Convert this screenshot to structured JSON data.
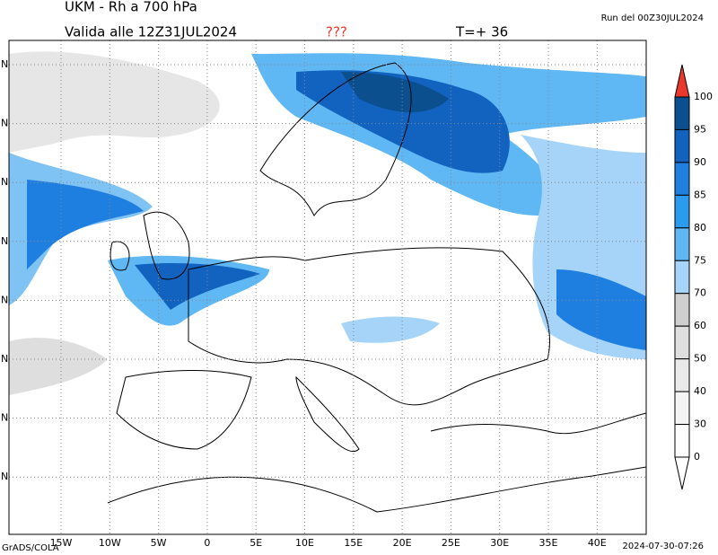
{
  "header": {
    "title": "UKM - Rh a 700 hPa",
    "valid": "Valida alle 12Z31JUL2024",
    "flag": "???",
    "step": "T=+ 36",
    "run": "Run del 00Z30JUL2024"
  },
  "map": {
    "lon_labels": [
      "15W",
      "10W",
      "5W",
      "0",
      "5E",
      "10E",
      "15E",
      "20E",
      "25E",
      "30E",
      "35E",
      "40E"
    ],
    "lat_labels": [
      "N",
      "N",
      "N",
      "N",
      "N",
      "N",
      "N",
      "N"
    ]
  },
  "colorbar": {
    "labels": [
      "100",
      "95",
      "90",
      "85",
      "80",
      "75",
      "70",
      "60",
      "50",
      "40",
      "30",
      "0"
    ],
    "colors": [
      "#0b4f8f",
      "#1262c0",
      "#1f7fe0",
      "#2a9bef",
      "#5fb8f3",
      "#a6d4f8",
      "#cfcfcf",
      "#dedede",
      "#e9e9e9",
      "#f4f4f4",
      "#ffffff"
    ],
    "top_color": "#e8392c"
  },
  "footer": {
    "left": "GrADS/COLA",
    "right": "2024-07-30-07:26"
  }
}
